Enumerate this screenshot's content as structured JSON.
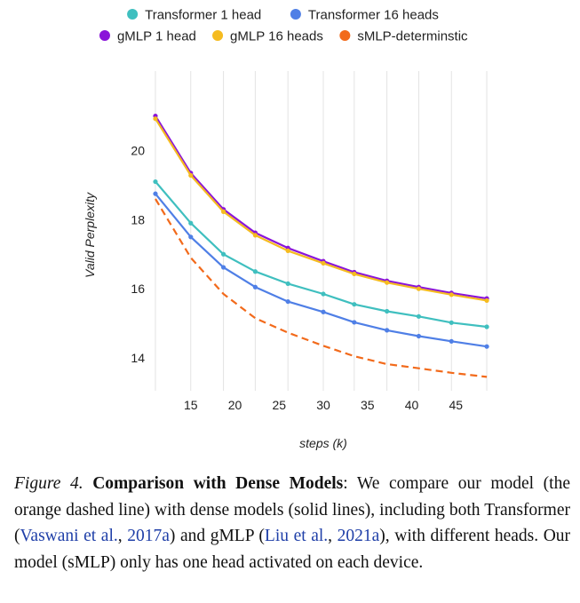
{
  "chart_data": {
    "type": "line",
    "title": "",
    "xlabel": "steps (k)",
    "ylabel": "Valid Perplexity",
    "xlim": [
      10.5,
      49.5
    ],
    "ylim": [
      13.05,
      22.3
    ],
    "xticks": [
      15,
      20,
      25,
      30,
      35,
      40,
      45
    ],
    "yticks": [
      14,
      16,
      18,
      20
    ],
    "grid": "vertical",
    "legend_position": "top",
    "x": [
      11,
      15,
      18.7,
      22.3,
      26,
      30,
      33.5,
      37.2,
      40.8,
      44.5,
      48.5
    ],
    "series": [
      {
        "name": "Transformer 1 head",
        "color": "#3fbfbf",
        "dashed": false,
        "values": [
          19.1,
          17.9,
          17.0,
          16.5,
          16.15,
          15.85,
          15.55,
          15.35,
          15.2,
          15.02,
          14.9
        ]
      },
      {
        "name": "Transformer 16 heads",
        "color": "#4f7fe6",
        "dashed": false,
        "values": [
          18.75,
          17.5,
          16.62,
          16.05,
          15.63,
          15.33,
          15.03,
          14.8,
          14.63,
          14.48,
          14.33
        ]
      },
      {
        "name": "gMLP 1 head",
        "color": "#8a14d9",
        "dashed": false,
        "values": [
          21.0,
          19.35,
          18.3,
          17.62,
          17.18,
          16.8,
          16.48,
          16.23,
          16.05,
          15.88,
          15.72
        ]
      },
      {
        "name": "gMLP 16 heads",
        "color": "#f5bb20",
        "dashed": false,
        "values": [
          20.92,
          19.28,
          18.23,
          17.55,
          17.1,
          16.74,
          16.43,
          16.18,
          16.0,
          15.83,
          15.66
        ]
      },
      {
        "name": "sMLP-determinstic",
        "color": "#f26a1b",
        "dashed": true,
        "values": [
          18.6,
          16.9,
          15.85,
          15.15,
          14.73,
          14.35,
          14.05,
          13.82,
          13.7,
          13.57,
          13.45
        ]
      }
    ]
  },
  "caption": {
    "figure_label": "Figure 4.",
    "title": "Comparison with Dense Models",
    "text_1": ":  We compare our model (the orange dashed line) with dense models (solid lines), including both Transformer (",
    "cite_1a": "Vaswani et al.",
    "sep_1": ", ",
    "cite_1b": "2017a",
    "text_2": ") and gMLP (",
    "cite_2a": "Liu et al.",
    "sep_2": ", ",
    "cite_2b": "2021a",
    "text_3": "), with different heads. Our model (sMLP) only has one head activated on each device."
  }
}
